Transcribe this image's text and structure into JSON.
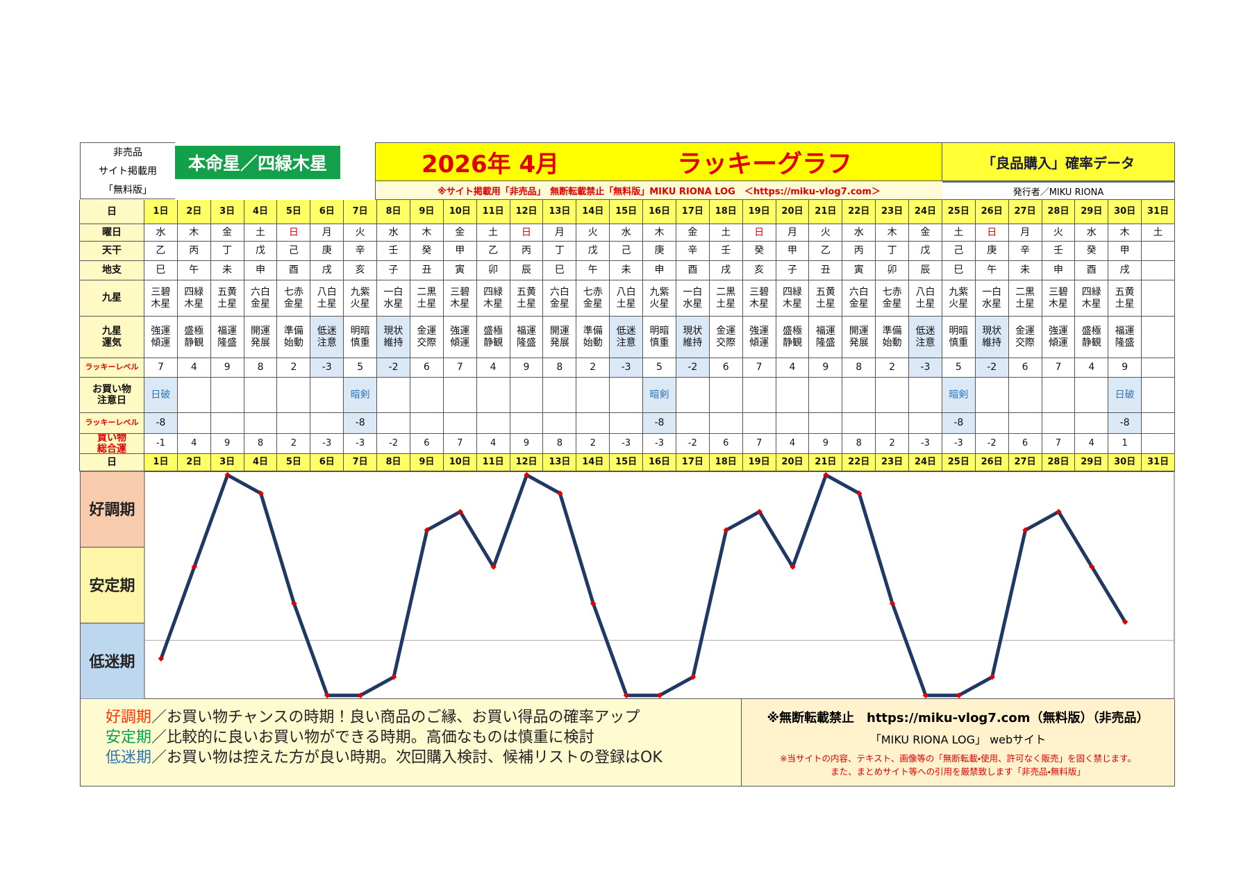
{
  "header": {
    "left_lines": [
      "非売品",
      "サイト掲載用",
      "「無料版」"
    ],
    "honmei": "本命星／四緑木星",
    "month": "2026年 4月",
    "title": "ラッキーグラフ",
    "subtitle": "「良品購入」確率データ",
    "notice": "※サイト掲載用「非売品」　無断転載禁止「無料版」MIKU RIONA LOG　＜https://miku-vlog7.com＞",
    "publisher": "発行者／MIKU RIONA"
  },
  "table": {
    "day_label": "日",
    "days": [
      "1日",
      "2日",
      "3日",
      "4日",
      "5日",
      "6日",
      "7日",
      "8日",
      "9日",
      "10日",
      "11日",
      "12日",
      "13日",
      "14日",
      "15日",
      "16日",
      "17日",
      "18日",
      "19日",
      "20日",
      "21日",
      "22日",
      "23日",
      "24日",
      "25日",
      "26日",
      "27日",
      "28日",
      "29日",
      "30日",
      "31日"
    ],
    "rows": [
      {
        "label_lines": [
          "曜日"
        ],
        "cells": [
          "水",
          "木",
          "金",
          "土",
          "日",
          "月",
          "火",
          "水",
          "木",
          "金",
          "土",
          "日",
          "月",
          "火",
          "水",
          "木",
          "金",
          "土",
          "日",
          "月",
          "火",
          "水",
          "木",
          "金",
          "土",
          "日",
          "月",
          "火",
          "水",
          "木",
          "土"
        ]
      },
      {
        "label_lines": [
          "天干"
        ],
        "cells": [
          "乙",
          "丙",
          "丁",
          "戊",
          "己",
          "庚",
          "辛",
          "壬",
          "癸",
          "甲",
          "乙",
          "丙",
          "丁",
          "戊",
          "己",
          "庚",
          "辛",
          "壬",
          "癸",
          "甲",
          "乙",
          "丙",
          "丁",
          "戊",
          "己",
          "庚",
          "辛",
          "壬",
          "癸",
          "甲",
          null
        ]
      },
      {
        "label_lines": [
          "地支"
        ],
        "cells": [
          "巳",
          "午",
          "未",
          "申",
          "酉",
          "戌",
          "亥",
          "子",
          "丑",
          "寅",
          "卯",
          "辰",
          "巳",
          "午",
          "未",
          "申",
          "酉",
          "戌",
          "亥",
          "子",
          "丑",
          "寅",
          "卯",
          "辰",
          "巳",
          "午",
          "未",
          "申",
          "酉",
          "戌",
          null
        ]
      },
      {
        "label_lines": [
          "九星"
        ],
        "cells": [
          "三碧木星",
          "四緑木星",
          "五黄土星",
          "六白金星",
          "七赤金星",
          "八白土星",
          "九紫火星",
          "一白水星",
          "二黒土星",
          "三碧木星",
          "四緑木星",
          "五黄土星",
          "六白金星",
          "七赤金星",
          "八白土星",
          "九紫火星",
          "一白水星",
          "二黒土星",
          "三碧木星",
          "四緑木星",
          "五黄土星",
          "六白金星",
          "七赤金星",
          "八白土星",
          "九紫火星",
          "一白水星",
          "二黒土星",
          "三碧木星",
          "四緑木星",
          "五黄土星",
          null
        ]
      },
      {
        "label_lines": [
          "九星",
          "運気"
        ],
        "cells": [
          "強運傾運",
          "盛極静観",
          "福運隆盛",
          "開運発展",
          "準備始動",
          "低迷注意",
          "明暗慎重",
          "現状維持",
          "金運交際",
          "強運傾運",
          "盛極静観",
          "福運隆盛",
          "開運発展",
          "準備始動",
          "低迷注意",
          "明暗慎重",
          "現状維持",
          "金運交際",
          "強運傾運",
          "盛極静観",
          "福運隆盛",
          "開運発展",
          "準備始動",
          "低迷注意",
          "明暗慎重",
          "現状維持",
          "金運交際",
          "強運傾運",
          "盛極静観",
          "福運隆盛",
          null
        ]
      },
      {
        "label_lines": [
          "ラッキーレベル"
        ],
        "cells": [
          7,
          4,
          9,
          8,
          2,
          -3,
          5,
          -2,
          6,
          7,
          4,
          9,
          8,
          2,
          -3,
          5,
          -2,
          6,
          7,
          4,
          9,
          8,
          2,
          -3,
          5,
          -2,
          6,
          7,
          4,
          9,
          null
        ]
      },
      {
        "label_lines": [
          "お買い物",
          "注意日"
        ],
        "cells": [
          "日破",
          null,
          null,
          null,
          null,
          null,
          "暗剣",
          null,
          null,
          null,
          null,
          null,
          null,
          null,
          null,
          "暗剣",
          null,
          null,
          null,
          null,
          null,
          null,
          null,
          null,
          "暗剣",
          null,
          null,
          null,
          null,
          "日破",
          null
        ]
      },
      {
        "label_lines": [
          "ラッキーレベル"
        ],
        "cells": [
          -8,
          null,
          null,
          null,
          null,
          null,
          -8,
          null,
          null,
          null,
          null,
          null,
          null,
          null,
          null,
          -8,
          null,
          null,
          null,
          null,
          null,
          null,
          null,
          null,
          -8,
          null,
          null,
          null,
          null,
          -8,
          null
        ]
      },
      {
        "label_lines": [
          "買い物",
          "総合運"
        ],
        "cells": [
          -1,
          4,
          9,
          8,
          2,
          -3,
          -3,
          -2,
          6,
          7,
          4,
          9,
          8,
          2,
          -3,
          -3,
          -2,
          6,
          7,
          4,
          9,
          8,
          2,
          -3,
          -3,
          -2,
          6,
          7,
          4,
          1,
          null
        ]
      }
    ]
  },
  "chart": {
    "zones": [
      {
        "label": "好調期",
        "color": "#f8cbad"
      },
      {
        "label": "安定期",
        "color": "#fff5a8"
      },
      {
        "label": "低迷期",
        "color": "#bdd7ee"
      }
    ],
    "ylim": [
      -3.2,
      9.2
    ],
    "reference_line": 0,
    "line_color": "#1f3864",
    "marker_color": "#e00000"
  },
  "legend": [
    {
      "term": "好調期",
      "text": "／お買い物チャンスの時期！良い商品のご縁、お買い得品の確率アップ",
      "color": "#ff3300"
    },
    {
      "term": "安定期",
      "text": "／比較的に良いお買い物ができる時期。高価なものは慎重に検討",
      "color": "#00a050"
    },
    {
      "term": "低迷期",
      "text": "／お買い物は控えた方が良い時期。次回購入検討、候補リストの登録はOK",
      "color": "#2e75b6"
    }
  ],
  "footer": {
    "line1": "※無断転載禁止　https://miku-vlog7.com（無料版）（非売品）",
    "line2": "「MIKU RIONA LOG」 webサイト",
    "warn1": "※当サイトの内容、テキスト、画像等の「無断転載・使用、許可なく販売」を固く禁じます。",
    "warn2": "また、まとめサイト等への引用を厳禁致します「非売品・無料版」"
  }
}
